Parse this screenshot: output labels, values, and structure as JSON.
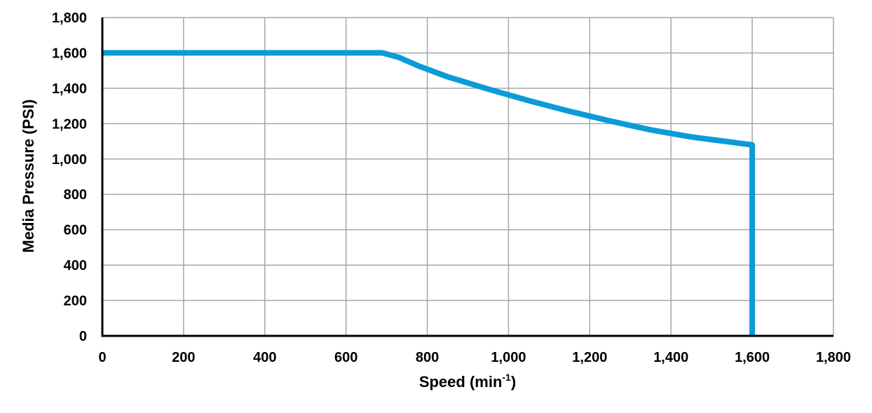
{
  "chart_data": {
    "type": "line",
    "title": "",
    "xlabel": "Speed (min",
    "xlabel_superscript": "-1",
    "xlabel_suffix": ")",
    "ylabel": "Media Pressure (PSI)",
    "xlim": [
      0,
      1800
    ],
    "ylim": [
      0,
      1800
    ],
    "x_ticks": [
      0,
      200,
      400,
      600,
      800,
      1000,
      1200,
      1400,
      1600,
      1800
    ],
    "y_ticks": [
      0,
      200,
      400,
      600,
      800,
      1000,
      1200,
      1400,
      1600,
      1800
    ],
    "x_tick_labels": [
      "0",
      "200",
      "400",
      "600",
      "800",
      "1,000",
      "1,200",
      "1,400",
      "1,600",
      "1,800"
    ],
    "y_tick_labels": [
      "0",
      "200",
      "400",
      "600",
      "800",
      "1,000",
      "1,200",
      "1,400",
      "1,600",
      "1,800"
    ],
    "grid": true,
    "legend": "none",
    "line_color": "#0A9BD8",
    "grid_color": "#A6A6A6",
    "axis_color": "#000000",
    "series": [
      {
        "points": [
          {
            "x": 0,
            "y": 1600
          },
          {
            "x": 690,
            "y": 1600
          },
          {
            "x": 730,
            "y": 1575
          },
          {
            "x": 780,
            "y": 1525
          },
          {
            "x": 850,
            "y": 1465
          },
          {
            "x": 950,
            "y": 1395
          },
          {
            "x": 1050,
            "y": 1330
          },
          {
            "x": 1150,
            "y": 1270
          },
          {
            "x": 1250,
            "y": 1215
          },
          {
            "x": 1350,
            "y": 1165
          },
          {
            "x": 1450,
            "y": 1125
          },
          {
            "x": 1550,
            "y": 1095
          },
          {
            "x": 1600,
            "y": 1080
          },
          {
            "x": 1600,
            "y": 0
          }
        ]
      }
    ]
  }
}
